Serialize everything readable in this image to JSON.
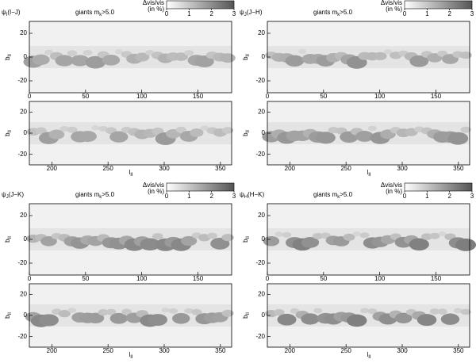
{
  "panels": [
    {
      "symbol": "ψ",
      "symbol_sub": "I",
      "band": "(I−J)",
      "sample": "giants m",
      "sample_sub": "k",
      "sample_cut": ">5.0"
    },
    {
      "symbol": "ψ",
      "symbol_sub": "J",
      "band": "(J−H)",
      "sample": "giants m",
      "sample_sub": "k",
      "sample_cut": ">5.0"
    },
    {
      "symbol": "ψ",
      "symbol_sub": "J",
      "band": "(J−K)",
      "sample": "giants m",
      "sample_sub": "k",
      "sample_cut": ">5.0"
    },
    {
      "symbol": "ψ",
      "symbol_sub": "H",
      "band": "(H−K)",
      "sample": "giants m",
      "sample_sub": "k",
      "sample_cut": ">5.0"
    }
  ],
  "colorbar": {
    "label": "Δvis/vis",
    "unit": "(in %)",
    "lim": [
      0,
      3
    ],
    "ticks": [
      0,
      1,
      2,
      3
    ]
  },
  "maps": [
    {
      "xlim": [
        0,
        180
      ],
      "xticks": [
        0,
        50,
        100,
        150
      ]
    },
    {
      "xlim": [
        180,
        360
      ],
      "xticks": [
        200,
        250,
        300,
        350
      ]
    }
  ],
  "ylim": [
    -30,
    30
  ],
  "yticks": [
    -20,
    0,
    20
  ],
  "ylabel": "b",
  "ylabel_sub": "II",
  "xlabel": "l",
  "xlabel_sub": "II"
}
